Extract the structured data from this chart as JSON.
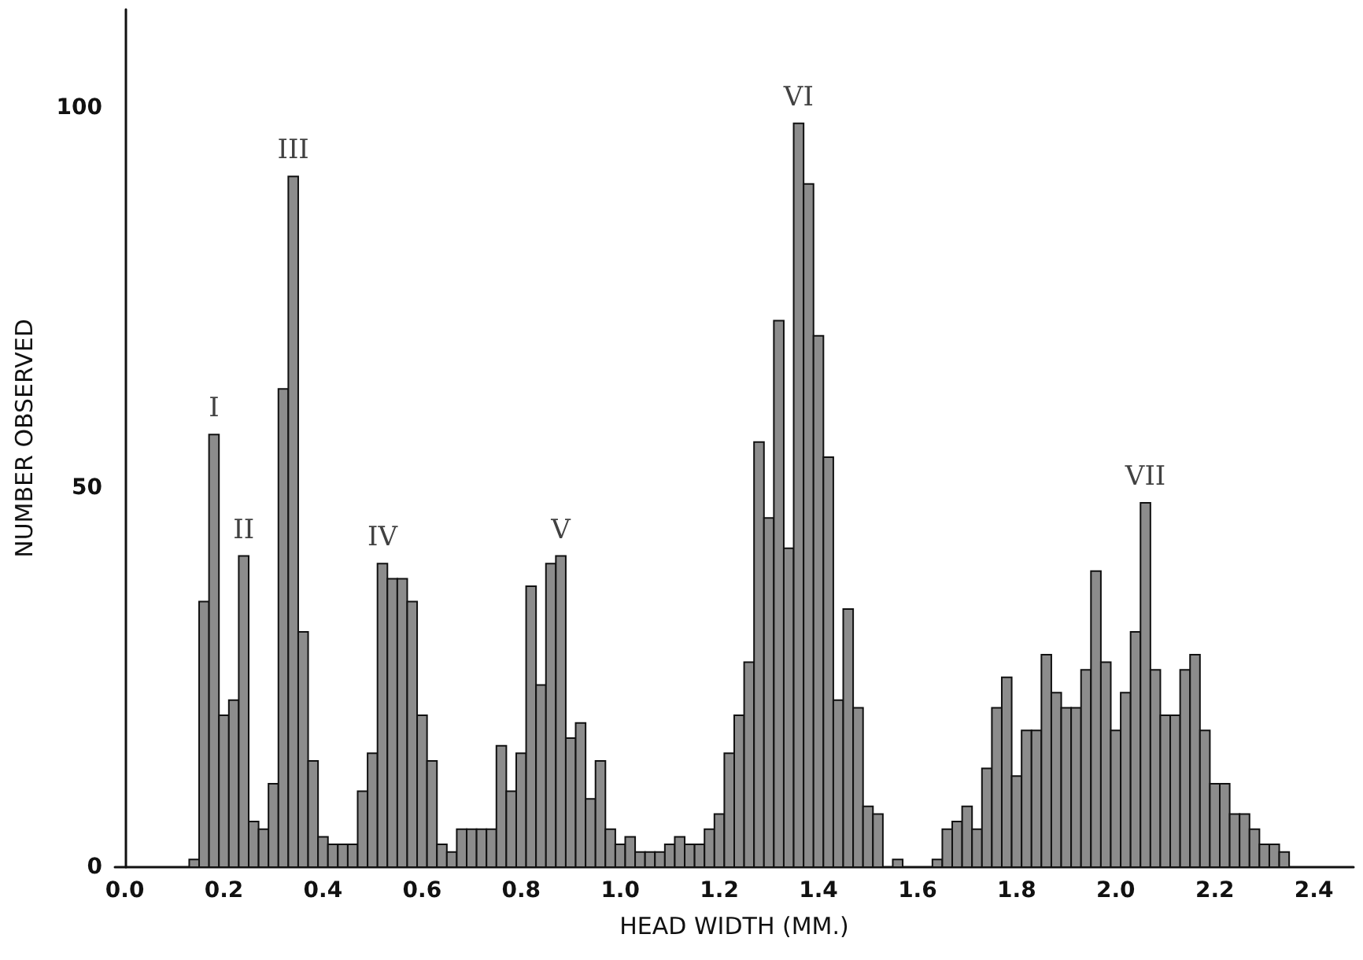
{
  "chart_data": {
    "type": "histogram",
    "xlabel": "HEAD WIDTH (MM.)",
    "ylabel": "NUMBER OBSERVED",
    "bins": [
      0.13,
      0.15,
      0.17,
      0.19,
      0.21,
      0.23,
      0.25,
      0.27,
      0.29,
      0.31,
      0.33,
      0.35,
      0.37,
      0.39,
      0.41,
      0.43,
      0.45,
      0.47,
      0.49,
      0.51,
      0.53,
      0.55,
      0.57,
      0.59,
      0.61,
      0.63,
      0.65,
      0.67,
      0.69,
      0.71,
      0.73,
      0.75,
      0.77,
      0.79,
      0.81,
      0.83,
      0.85,
      0.87,
      0.89,
      0.91,
      0.93,
      0.95,
      0.97,
      0.99,
      1.01,
      1.03,
      1.05,
      1.07,
      1.09,
      1.11,
      1.13,
      1.15,
      1.17,
      1.19,
      1.21,
      1.23,
      1.25,
      1.27,
      1.29,
      1.31,
      1.33,
      1.35,
      1.37,
      1.39,
      1.41,
      1.43,
      1.45,
      1.47,
      1.49,
      1.51,
      1.53,
      1.55,
      1.57,
      1.59,
      1.61,
      1.63,
      1.65,
      1.67,
      1.69,
      1.71,
      1.73,
      1.75,
      1.77,
      1.79,
      1.81,
      1.83,
      1.85,
      1.87,
      1.89,
      1.91,
      1.93,
      1.95,
      1.97,
      1.99,
      2.01,
      2.03,
      2.05,
      2.07,
      2.09,
      2.11,
      2.13,
      2.15,
      2.17,
      2.19,
      2.21,
      2.23,
      2.25,
      2.27,
      2.29,
      2.31,
      2.33,
      2.35
    ],
    "values": [
      1,
      35,
      57,
      20,
      22,
      41,
      6,
      5,
      11,
      63,
      91,
      31,
      14,
      4,
      3,
      3,
      3,
      10,
      15,
      40,
      38,
      38,
      35,
      20,
      14,
      3,
      2,
      5,
      5,
      5,
      5,
      16,
      10,
      15,
      37,
      24,
      40,
      41,
      17,
      19,
      9,
      14,
      5,
      3,
      4,
      2,
      2,
      2,
      3,
      4,
      3,
      3,
      5,
      7,
      15,
      20,
      27,
      56,
      46,
      72,
      42,
      98,
      90,
      70,
      54,
      22,
      34,
      21,
      8,
      7,
      0,
      1,
      0,
      0,
      0,
      1,
      5,
      6,
      8,
      5,
      13,
      21,
      25,
      12,
      18,
      18,
      28,
      23,
      21,
      21,
      26,
      39,
      27,
      18,
      23,
      31,
      48,
      26,
      20,
      20,
      26,
      28,
      18,
      11,
      11,
      7,
      7,
      5,
      3,
      3,
      2
    ],
    "color": "#8c8c8c",
    "xlim": [
      -0.02,
      2.48
    ],
    "ylim": [
      0,
      113
    ],
    "xticks": [
      {
        "value": 0,
        "label": "0.0"
      },
      0.2,
      0.4,
      0.6,
      0.8,
      {
        "value": 1,
        "label": "1.0"
      },
      1.2,
      1.4,
      1.6,
      1.8,
      {
        "value": 2,
        "label": "2.0"
      },
      2.2,
      2.4
    ],
    "yticks": [
      0,
      50,
      100
    ],
    "annotations": [
      {
        "text": "I",
        "x": 0.18,
        "y": 57
      },
      {
        "text": "II",
        "x": 0.24,
        "y": 41
      },
      {
        "text": "III",
        "x": 0.34,
        "y": 91
      },
      {
        "text": "IV",
        "x": 0.52,
        "y": 40
      },
      {
        "text": "V",
        "x": 0.88,
        "y": 41
      },
      {
        "text": "VI",
        "x": 1.36,
        "y": 98
      },
      {
        "text": "VII",
        "x": 2.06,
        "y": 48
      }
    ]
  }
}
